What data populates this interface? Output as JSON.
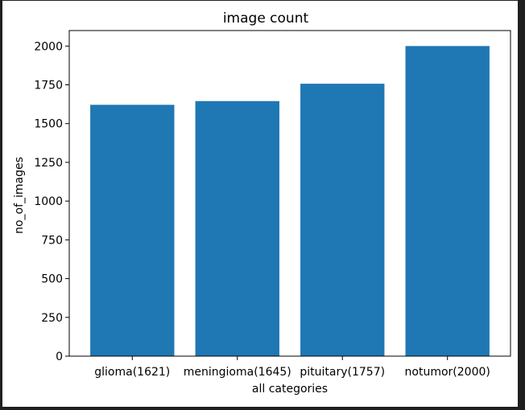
{
  "chart_data": {
    "type": "bar",
    "title": "image count",
    "xlabel": "all categories",
    "ylabel": "no_of_images",
    "categories": [
      "glioma(1621)",
      "meningioma(1645)",
      "pituitary(1757)",
      "notumor(2000)"
    ],
    "values": [
      1621,
      1645,
      1757,
      2000
    ],
    "ylim": [
      0,
      2100
    ],
    "yticks": [
      0,
      250,
      500,
      750,
      1000,
      1250,
      1500,
      1750,
      2000
    ],
    "bar_color": "#1f77b4",
    "grid": false
  }
}
